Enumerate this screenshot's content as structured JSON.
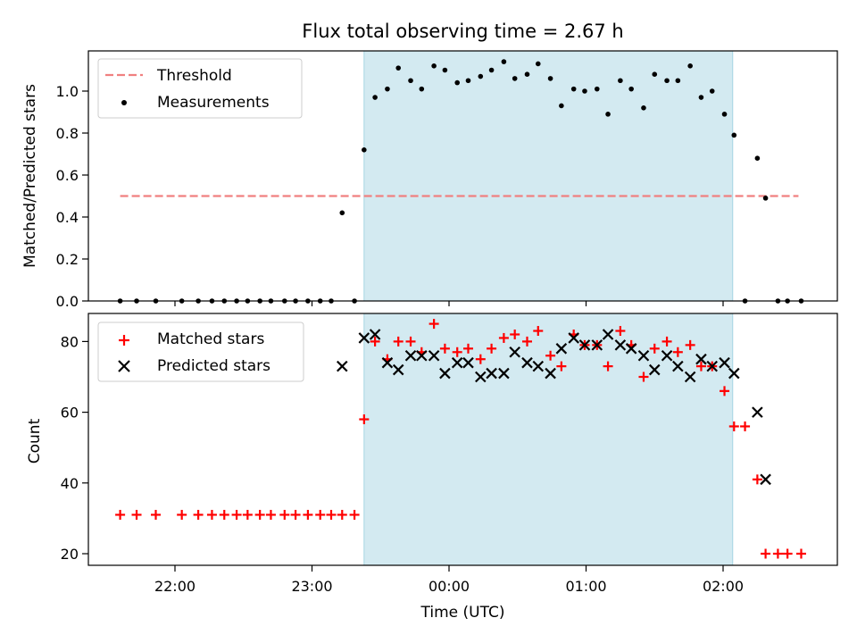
{
  "chart_data": [
    {
      "type": "scatter",
      "title": "Flux total observing time = 2.67 h",
      "ylabel": "Matched/Predicted stars",
      "xlabel": "",
      "ylim": [
        0,
        1.2
      ],
      "yticks": [
        "0.0",
        "0.2",
        "0.4",
        "0.6",
        "0.8",
        "1.0"
      ],
      "x_axis": "time (hours relative to 00:00 UTC)",
      "highlight_span": {
        "start": -0.62,
        "end": 2.07,
        "color": "#d3eaf1"
      },
      "legend": {
        "position": "top-left",
        "entries": [
          "Threshold",
          "Measurements"
        ]
      },
      "threshold": {
        "name": "Threshold",
        "value": 0.5,
        "x_start": -2.4,
        "x_end": 2.55,
        "color": "#f08080"
      },
      "series": [
        {
          "name": "Measurements",
          "color": "#000000",
          "x": [
            -2.4,
            -2.28,
            -2.14,
            -1.95,
            -1.83,
            -1.73,
            -1.64,
            -1.55,
            -1.47,
            -1.38,
            -1.3,
            -1.2,
            -1.12,
            -1.03,
            -0.94,
            -0.86,
            -0.78,
            -0.69,
            -0.62,
            -0.54,
            -0.45,
            -0.37,
            -0.28,
            -0.2,
            -0.11,
            -0.03,
            0.06,
            0.14,
            0.23,
            0.31,
            0.4,
            0.48,
            0.57,
            0.65,
            0.74,
            0.82,
            0.91,
            0.99,
            1.08,
            1.16,
            1.25,
            1.33,
            1.42,
            1.5,
            1.59,
            1.67,
            1.76,
            1.84,
            1.92,
            2.01,
            2.08,
            2.16,
            2.25,
            2.31,
            2.4,
            2.47,
            2.57
          ],
          "y": [
            0,
            0,
            0,
            0,
            0,
            0,
            0,
            0,
            0,
            0,
            0,
            0,
            0,
            0,
            0,
            0,
            0.42,
            0,
            0.72,
            0.97,
            1.01,
            1.11,
            1.05,
            1.01,
            1.12,
            1.1,
            1.04,
            1.05,
            1.07,
            1.1,
            1.14,
            1.06,
            1.08,
            1.13,
            1.06,
            0.93,
            1.01,
            1.0,
            1.01,
            0.89,
            1.05,
            1.01,
            0.92,
            1.08,
            1.05,
            1.05,
            1.12,
            0.97,
            1.0,
            0.89,
            0.79,
            0,
            0.68,
            0.49,
            0,
            0,
            0
          ]
        }
      ]
    },
    {
      "type": "scatter",
      "title": "",
      "ylabel": "Count",
      "xlabel": "Time (UTC)",
      "ylim": [
        17,
        89
      ],
      "yticks": [
        "20",
        "40",
        "60",
        "80"
      ],
      "xticks": [
        {
          "value": -2,
          "label": "22:00"
        },
        {
          "value": -1,
          "label": "23:00"
        },
        {
          "value": 0,
          "label": "00:00"
        },
        {
          "value": 1,
          "label": "01:00"
        },
        {
          "value": 2,
          "label": "02:00"
        }
      ],
      "highlight_span": {
        "start": -0.62,
        "end": 2.07,
        "color": "#d3eaf1"
      },
      "legend": {
        "position": "top-left",
        "entries": [
          "Matched stars",
          "Predicted stars"
        ]
      },
      "series": [
        {
          "name": "Matched stars",
          "marker": "plus",
          "color": "#ff0000",
          "x": [
            -2.4,
            -2.28,
            -2.14,
            -1.95,
            -1.83,
            -1.73,
            -1.64,
            -1.55,
            -1.47,
            -1.38,
            -1.3,
            -1.2,
            -1.12,
            -1.03,
            -0.94,
            -0.86,
            -0.78,
            -0.69,
            -0.62,
            -0.54,
            -0.45,
            -0.37,
            -0.28,
            -0.2,
            -0.11,
            -0.03,
            0.06,
            0.14,
            0.23,
            0.31,
            0.4,
            0.48,
            0.57,
            0.65,
            0.74,
            0.82,
            0.91,
            0.99,
            1.08,
            1.16,
            1.25,
            1.33,
            1.42,
            1.5,
            1.59,
            1.67,
            1.76,
            1.84,
            1.92,
            2.01,
            2.08,
            2.16,
            2.25,
            2.31,
            2.4,
            2.47,
            2.57
          ],
          "y": [
            31,
            31,
            31,
            31,
            31,
            31,
            31,
            31,
            31,
            31,
            31,
            31,
            31,
            31,
            31,
            31,
            31,
            31,
            58,
            80,
            75,
            80,
            80,
            77,
            85,
            78,
            77,
            78,
            75,
            78,
            81,
            82,
            80,
            83,
            76,
            73,
            82,
            79,
            79,
            73,
            83,
            79,
            70,
            78,
            80,
            77,
            79,
            73,
            73,
            66,
            56,
            56,
            41,
            20,
            20,
            20,
            20
          ]
        },
        {
          "name": "Predicted stars",
          "marker": "x",
          "color": "#000000",
          "x": [
            -0.78,
            -0.62,
            -0.54,
            -0.45,
            -0.37,
            -0.28,
            -0.2,
            -0.11,
            -0.03,
            0.06,
            0.14,
            0.23,
            0.31,
            0.4,
            0.48,
            0.57,
            0.65,
            0.74,
            0.82,
            0.91,
            0.99,
            1.08,
            1.16,
            1.25,
            1.33,
            1.42,
            1.5,
            1.59,
            1.67,
            1.76,
            1.84,
            1.92,
            2.01,
            2.08,
            2.25,
            2.31
          ],
          "y": [
            73,
            81,
            82,
            74,
            72,
            76,
            76,
            76,
            71,
            74,
            74,
            70,
            71,
            71,
            77,
            74,
            73,
            71,
            78,
            81,
            79,
            79,
            82,
            79,
            78,
            76,
            72,
            76,
            73,
            70,
            75,
            73,
            74,
            71,
            60,
            41
          ]
        }
      ]
    }
  ]
}
